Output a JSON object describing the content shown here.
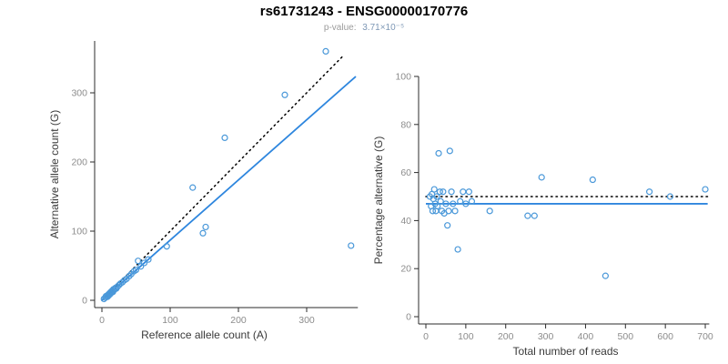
{
  "title": "rs61731243 - ENSG00000170776",
  "subtitle": {
    "label": "p-value:",
    "value": "3.71×10⁻⁵"
  },
  "colors": {
    "point": "#4A98D9",
    "fit_line": "#2E86DE",
    "reference_line": "#000000",
    "axis_line": "#2B2B2B",
    "tick_label": "#8C8C8C",
    "axis_title": "#3A3A3A",
    "title_text": "#000000",
    "subtitle_text": "#9B9B9B",
    "subtitle_value": "#7D97B5"
  },
  "chart_data": [
    {
      "type": "scatter",
      "name": "allele-counts",
      "xlabel": "Reference allele count (A)",
      "ylabel": "Alternative allele count (G)",
      "xlim": [
        0,
        375
      ],
      "ylim": [
        0,
        375
      ],
      "xticks": [
        0,
        100,
        200,
        300
      ],
      "yticks": [
        0,
        100,
        200,
        300
      ],
      "grid": false,
      "lines": [
        {
          "name": "identity-line",
          "style": "dotted",
          "color_key": "reference_line",
          "slope": 1,
          "intercept": 0,
          "x_range": [
            0,
            352
          ]
        },
        {
          "name": "regression-line",
          "style": "solid",
          "color_key": "fit_line",
          "slope": 0.87,
          "intercept": 0,
          "x_range": [
            0,
            372
          ]
        }
      ],
      "points": [
        [
          3,
          2
        ],
        [
          5,
          4
        ],
        [
          6,
          6
        ],
        [
          8,
          5
        ],
        [
          9,
          8
        ],
        [
          10,
          7
        ],
        [
          11,
          10
        ],
        [
          12,
          9
        ],
        [
          13,
          12
        ],
        [
          14,
          11
        ],
        [
          15,
          14
        ],
        [
          16,
          12
        ],
        [
          17,
          16
        ],
        [
          18,
          15
        ],
        [
          20,
          18
        ],
        [
          21,
          17
        ],
        [
          23,
          20
        ],
        [
          25,
          22
        ],
        [
          27,
          24
        ],
        [
          30,
          26
        ],
        [
          33,
          29
        ],
        [
          36,
          31
        ],
        [
          40,
          35
        ],
        [
          43,
          38
        ],
        [
          47,
          42
        ],
        [
          50,
          44
        ],
        [
          53,
          57
        ],
        [
          57,
          49
        ],
        [
          62,
          54
        ],
        [
          68,
          59
        ],
        [
          95,
          78
        ],
        [
          133,
          163
        ],
        [
          148,
          97
        ],
        [
          152,
          106
        ],
        [
          180,
          235
        ],
        [
          268,
          297
        ],
        [
          328,
          360
        ],
        [
          365,
          79
        ]
      ]
    },
    {
      "type": "scatter",
      "name": "percentage-vs-reads",
      "xlabel": "Total number of reads",
      "ylabel": "Percentage alternative (G)",
      "xlim": [
        0,
        710
      ],
      "ylim": [
        0,
        100
      ],
      "xticks": [
        0,
        100,
        200,
        300,
        400,
        500,
        600,
        700
      ],
      "yticks": [
        0,
        20,
        40,
        60,
        80,
        100
      ],
      "grid": false,
      "lines": [
        {
          "name": "expected-50-line",
          "style": "dotted",
          "color_key": "reference_line",
          "slope": 0,
          "intercept": 50,
          "x_range": [
            0,
            706
          ]
        },
        {
          "name": "mean-percentage-line",
          "style": "solid",
          "color_key": "fit_line",
          "slope": 0,
          "intercept": 47,
          "x_range": [
            0,
            706
          ]
        }
      ],
      "points": [
        [
          10,
          50
        ],
        [
          13,
          46
        ],
        [
          15,
          51
        ],
        [
          17,
          44
        ],
        [
          19,
          49
        ],
        [
          21,
          53
        ],
        [
          23,
          47
        ],
        [
          25,
          44
        ],
        [
          27,
          50
        ],
        [
          29,
          46
        ],
        [
          32,
          68
        ],
        [
          35,
          52
        ],
        [
          37,
          48
        ],
        [
          40,
          44
        ],
        [
          43,
          52
        ],
        [
          46,
          43
        ],
        [
          50,
          47
        ],
        [
          54,
          38
        ],
        [
          57,
          44
        ],
        [
          60,
          69
        ],
        [
          64,
          52
        ],
        [
          68,
          47
        ],
        [
          73,
          44
        ],
        [
          80,
          28
        ],
        [
          86,
          48
        ],
        [
          93,
          52
        ],
        [
          100,
          47
        ],
        [
          108,
          52
        ],
        [
          115,
          48
        ],
        [
          160,
          44
        ],
        [
          255,
          42
        ],
        [
          272,
          42
        ],
        [
          290,
          58
        ],
        [
          418,
          57
        ],
        [
          450,
          17
        ],
        [
          560,
          52
        ],
        [
          612,
          50
        ],
        [
          700,
          53
        ]
      ]
    }
  ]
}
